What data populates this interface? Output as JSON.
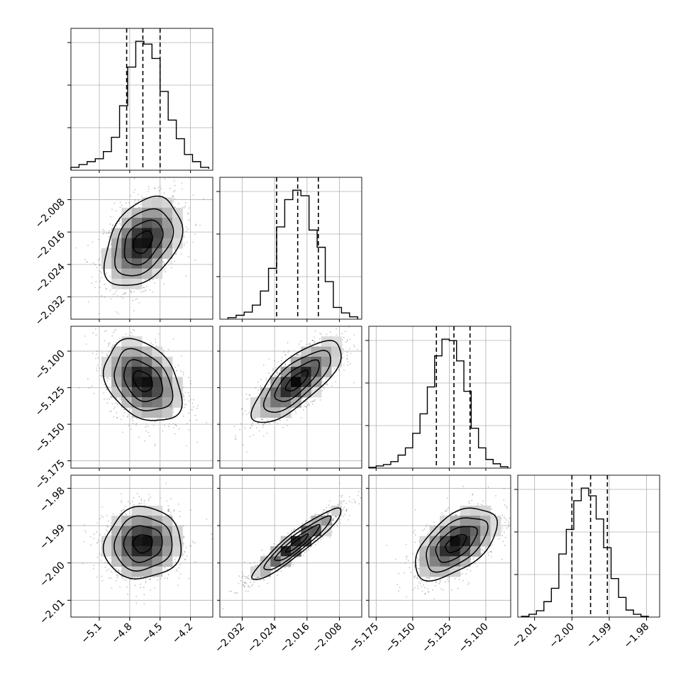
{
  "chart_data": {
    "type": "corner",
    "parameters": [
      {
        "axis_range": [
          -5.38,
          -3.98
        ],
        "ticks": [
          -5.1,
          -4.8,
          -4.5,
          -4.2
        ],
        "tick_labels": [
          "−5.1",
          "−4.8",
          "−4.5",
          "−4.2"
        ],
        "quantiles": [
          -4.83,
          -4.67,
          -4.5
        ],
        "histogram_bins": [
          -5.38,
          -5.3,
          -5.22,
          -5.14,
          -5.06,
          -4.98,
          -4.9,
          -4.82,
          -4.74,
          -4.66,
          -4.58,
          -4.5,
          -4.42,
          -4.34,
          -4.26,
          -4.18,
          -4.1,
          -4.02
        ],
        "histogram_counts": [
          2,
          4,
          6,
          8,
          13,
          23,
          45,
          72,
          90,
          88,
          78,
          55,
          35,
          22,
          11,
          6,
          2,
          1
        ]
      },
      {
        "axis_range": [
          -2.0375,
          -2.0025
        ],
        "ticks": [
          -2.032,
          -2.024,
          -2.016,
          -2.008
        ],
        "tick_labels": [
          "−2.032",
          "−2.024",
          "−2.016",
          "−2.008"
        ],
        "quantiles": [
          -2.0235,
          -2.0183,
          -2.0132
        ],
        "histogram_bins": [
          -2.0355,
          -2.0335,
          -2.0315,
          -2.0295,
          -2.0275,
          -2.0255,
          -2.0235,
          -2.0215,
          -2.0195,
          -2.0175,
          -2.0155,
          -2.0135,
          -2.0115,
          -2.0095,
          -2.0075,
          -2.0055,
          -2.0035
        ],
        "histogram_counts": [
          2,
          5,
          9,
          18,
          36,
          65,
          118,
          153,
          165,
          158,
          114,
          92,
          48,
          15,
          8,
          3
        ]
      },
      {
        "axis_range": [
          -5.18,
          -5.083
        ],
        "ticks": [
          -5.175,
          -5.15,
          -5.125,
          -5.1
        ],
        "tick_labels": [
          "−5.175",
          "−5.150",
          "−5.125",
          "−5.100"
        ],
        "quantiles": [
          -5.1338,
          -5.1218,
          -5.1108
        ],
        "histogram_bins": [
          -5.18,
          -5.175,
          -5.17,
          -5.165,
          -5.16,
          -5.155,
          -5.15,
          -5.145,
          -5.14,
          -5.135,
          -5.13,
          -5.125,
          -5.12,
          -5.115,
          -5.11,
          -5.105,
          -5.1,
          -5.095,
          -5.09,
          -5.085
        ],
        "histogram_counts": [
          1,
          3,
          5,
          9,
          18,
          28,
          48,
          75,
          112,
          155,
          178,
          176,
          148,
          106,
          55,
          28,
          12,
          6,
          2
        ]
      },
      {
        "axis_range": [
          -2.0145,
          -1.9765
        ],
        "ticks": [
          -2.01,
          -2.0,
          -1.99,
          -1.98
        ],
        "tick_labels": [
          "−2.01",
          "−2.00",
          "−1.99",
          "−1.98"
        ],
        "quantiles": [
          -2.0,
          -1.995,
          -1.9905
        ],
        "histogram_bins": [
          -2.0135,
          -2.0115,
          -2.0095,
          -2.0075,
          -2.0055,
          -2.0035,
          -2.0015,
          -1.9995,
          -1.9975,
          -1.9955,
          -1.9935,
          -1.9915,
          -1.9895,
          -1.9875,
          -1.9855,
          -1.9835,
          -1.9815,
          -1.9795
        ],
        "histogram_counts": [
          1,
          4,
          9,
          22,
          41,
          90,
          125,
          166,
          184,
          173,
          140,
          99,
          55,
          28,
          10,
          4,
          1
        ]
      }
    ],
    "pairs": [
      {
        "row": 1,
        "col": 0,
        "mean": [
          -4.67,
          -2.0185
        ],
        "std": [
          0.19,
          0.0055
        ],
        "rho": 0.38
      },
      {
        "row": 2,
        "col": 0,
        "mean": [
          -4.67,
          -5.1205
        ],
        "std": [
          0.19,
          0.014
        ],
        "rho": -0.33
      },
      {
        "row": 2,
        "col": 1,
        "mean": [
          -2.0185,
          -5.1205
        ],
        "std": [
          0.0055,
          0.014
        ],
        "rho": 0.75
      },
      {
        "row": 3,
        "col": 0,
        "mean": [
          -4.67,
          -1.9948
        ],
        "std": [
          0.19,
          0.0048
        ],
        "rho": 0.05
      },
      {
        "row": 3,
        "col": 1,
        "mean": [
          -2.0185,
          -1.9948
        ],
        "std": [
          0.0055,
          0.0048
        ],
        "rho": 0.93
      },
      {
        "row": 3,
        "col": 2,
        "mean": [
          -5.1205,
          -1.9948
        ],
        "std": [
          0.014,
          0.0048
        ],
        "rho": 0.55
      }
    ],
    "contour_levels_sigma": [
      0.5,
      1.0,
      1.5,
      2.0
    ],
    "grid": true,
    "colors": {
      "lines": "#000000",
      "grid": "#b0b0b0",
      "points": "#555555"
    }
  }
}
